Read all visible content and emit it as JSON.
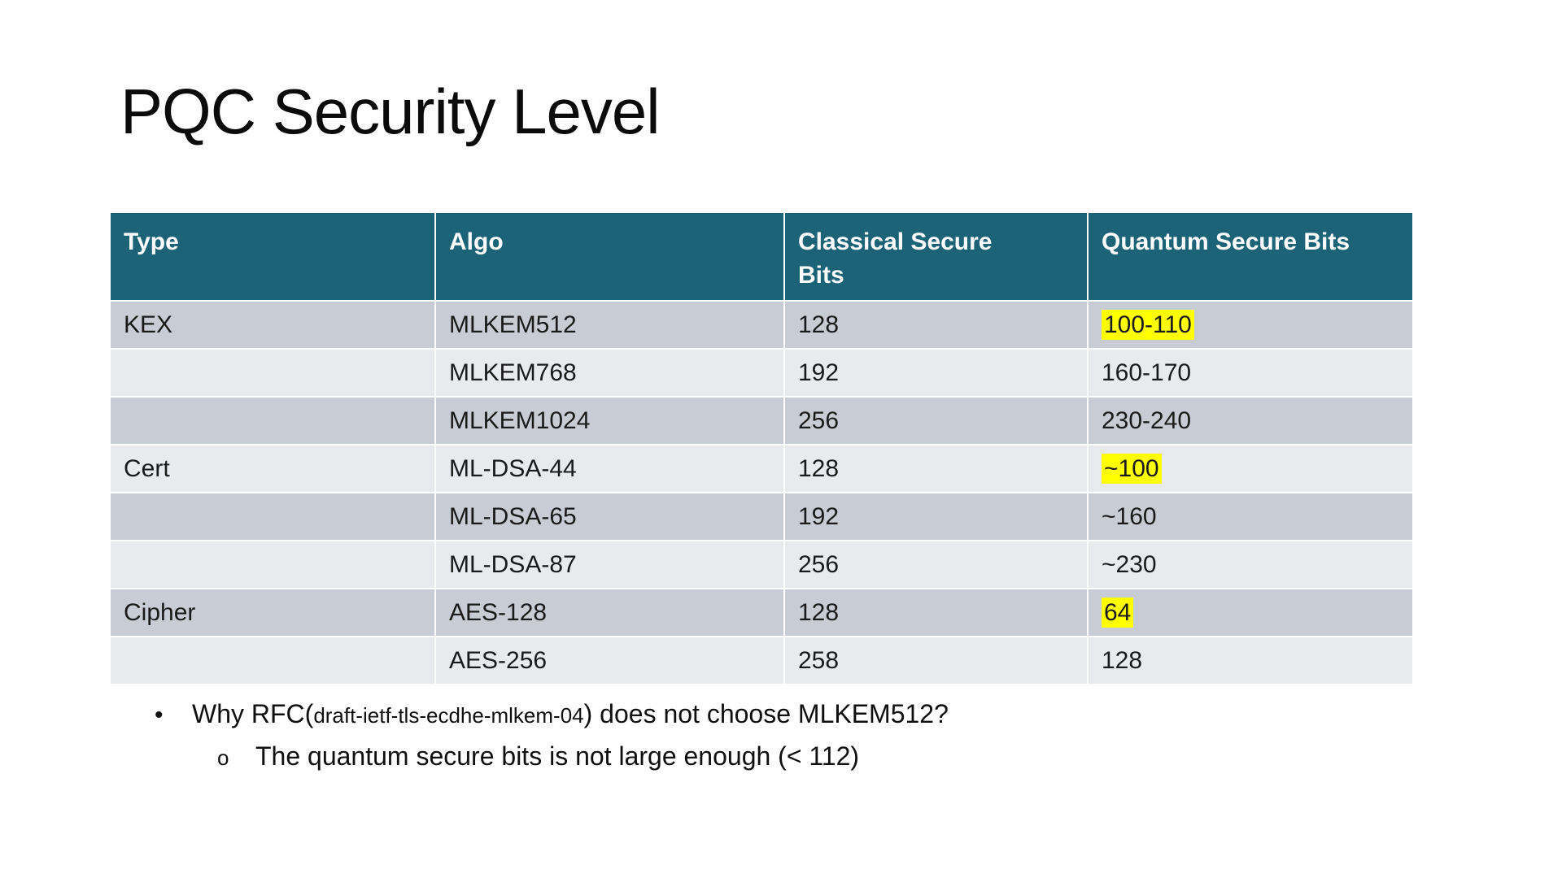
{
  "slide": {
    "title": "PQC Security Level",
    "table": {
      "headers": [
        "Type",
        "Algo",
        "Classical Secure Bits",
        "Quantum Secure Bits"
      ],
      "rows": [
        {
          "type": "KEX",
          "algo": "MLKEM512",
          "classical": "128",
          "quantum": "100-110",
          "quantum_highlight": true
        },
        {
          "type": "",
          "algo": "MLKEM768",
          "classical": "192",
          "quantum": "160-170",
          "quantum_highlight": false
        },
        {
          "type": "",
          "algo": "MLKEM1024",
          "classical": "256",
          "quantum": "230-240",
          "quantum_highlight": false
        },
        {
          "type": "Cert",
          "algo": "ML-DSA-44",
          "classical": "128",
          "quantum": "~100",
          "quantum_highlight": true
        },
        {
          "type": "",
          "algo": "ML-DSA-65",
          "classical": "192",
          "quantum": "~160",
          "quantum_highlight": false
        },
        {
          "type": "",
          "algo": "ML-DSA-87",
          "classical": "256",
          "quantum": "~230",
          "quantum_highlight": false
        },
        {
          "type": "Cipher",
          "algo": "AES-128",
          "classical": "128",
          "quantum": "64",
          "quantum_highlight": true
        },
        {
          "type": "",
          "algo": "AES-256",
          "classical": "258",
          "quantum": "128",
          "quantum_highlight": false
        }
      ]
    },
    "notes": {
      "bullet_marker": "•",
      "main_prefix": "Why RFC(",
      "main_small": "draft-ietf-tls-ecdhe-mlkem-04",
      "main_suffix": ") does not choose MLKEM512?",
      "sub_marker": "o",
      "sub_text": "The quantum secure bits is not large enough (< 112)"
    },
    "colors": {
      "header_bg": "#1d6378",
      "row_dark": "#c8ccd4",
      "row_light": "#e8eaed",
      "highlight": "#ffff00"
    }
  }
}
